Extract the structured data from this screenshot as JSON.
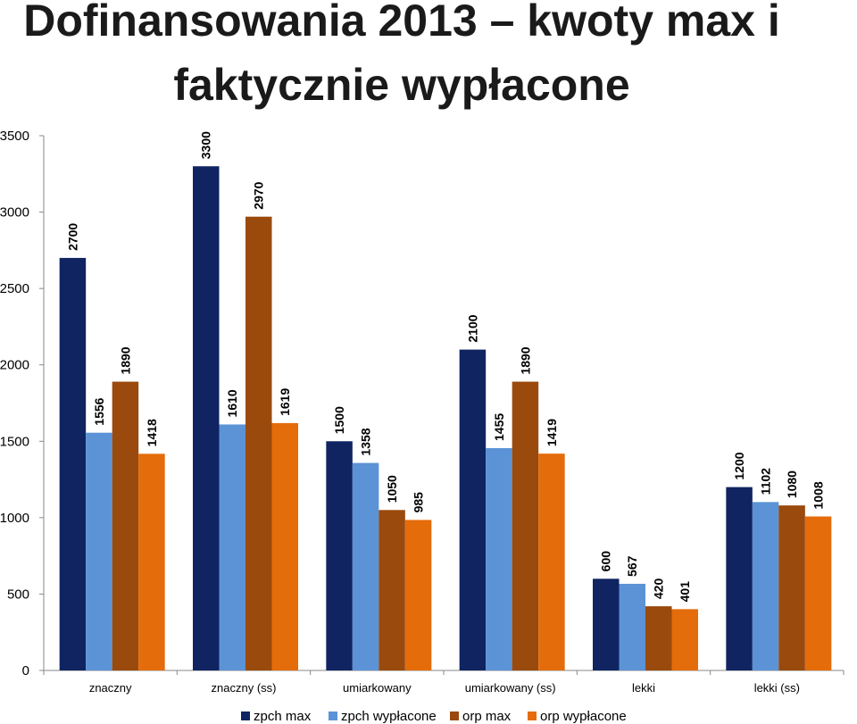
{
  "chart_data": {
    "type": "bar",
    "title_lines": [
      "Dofinansowania 2013 – kwoty max i",
      "faktycznie wypłacone"
    ],
    "categories": [
      "znaczny",
      "znaczny (ss)",
      "umiarkowany",
      "umiarkowany (ss)",
      "lekki",
      "lekki (ss)"
    ],
    "series": [
      {
        "name": "zpch max",
        "color": "#0f2461",
        "values": [
          2700,
          3300,
          1500,
          2100,
          600,
          1200
        ]
      },
      {
        "name": "zpch wypłacone",
        "color": "#5b93d6",
        "values": [
          1556,
          1610,
          1358,
          1455,
          567,
          1102
        ]
      },
      {
        "name": "orp max",
        "color": "#9a4a0c",
        "values": [
          1890,
          2970,
          1050,
          1890,
          420,
          1080
        ]
      },
      {
        "name": "orp wypłacone",
        "color": "#e46c0a",
        "values": [
          1418,
          1619,
          985,
          1419,
          401,
          1008
        ]
      }
    ],
    "ylim": [
      0,
      3500
    ],
    "yticks": [
      0,
      500,
      1000,
      1500,
      2000,
      2500,
      3000,
      3500
    ],
    "grid": false,
    "legend_position": "bottom",
    "data_labels": "vertical",
    "xlabel": "",
    "ylabel": ""
  }
}
